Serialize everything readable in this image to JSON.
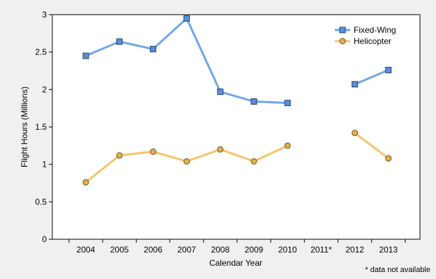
{
  "chart_data": {
    "type": "line",
    "title": "",
    "xlabel": "Calendar Year",
    "ylabel": "Flight Hours (Millions)",
    "categories": [
      "2004",
      "2005",
      "2006",
      "2007",
      "2008",
      "2009",
      "2010",
      "2011*",
      "2012",
      "2013"
    ],
    "ylim": [
      0,
      3
    ],
    "yticks": [
      "0",
      "0.5",
      "1",
      "1.5",
      "2",
      "2.5",
      "3"
    ],
    "legend_position": "top-right",
    "grid": false,
    "series": [
      {
        "name": "Fixed-Wing",
        "marker": "square",
        "color": "#6fa6e8",
        "marker_fill": "#5b8fd9",
        "values": [
          2.45,
          2.64,
          2.54,
          2.95,
          1.97,
          1.84,
          1.82,
          null,
          2.07,
          2.26
        ]
      },
      {
        "name": "Helicopter",
        "marker": "circle",
        "color": "#f5c46a",
        "marker_fill": "#e3b24f",
        "values": [
          0.76,
          1.12,
          1.17,
          1.04,
          1.2,
          1.04,
          1.25,
          null,
          1.42,
          1.08
        ]
      }
    ],
    "footnote": "* data not available"
  }
}
